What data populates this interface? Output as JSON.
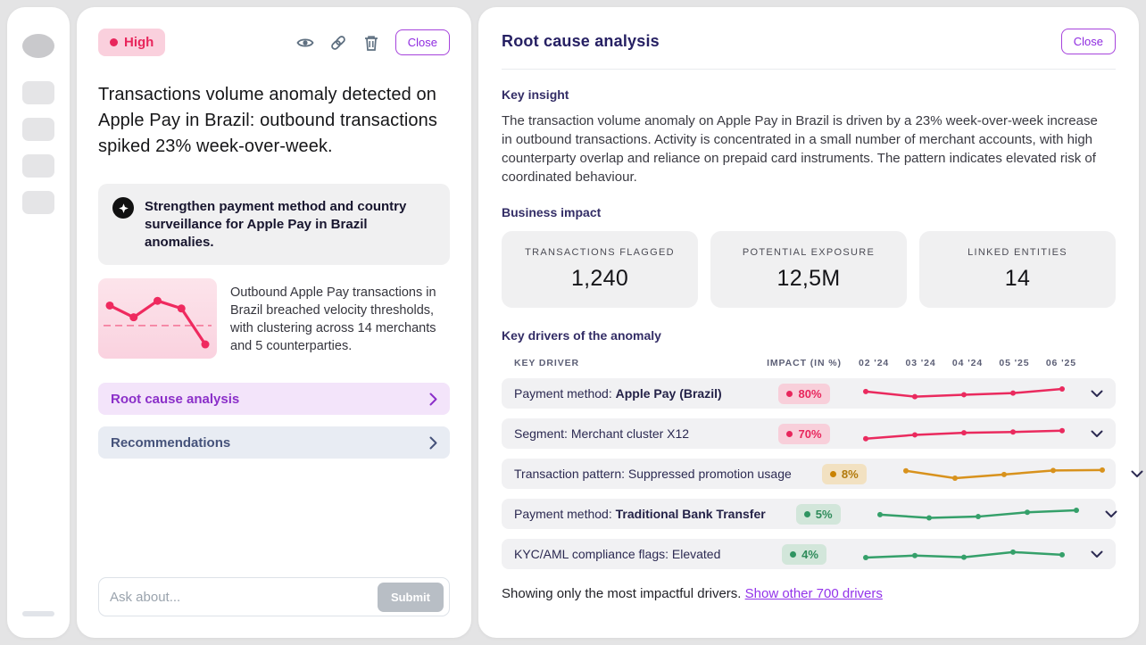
{
  "alert": {
    "severity": {
      "label": "High",
      "color": "#e8265c",
      "bg": "#fad0dd"
    },
    "actions": {
      "close_label": "Close"
    },
    "title": "Transactions volume anomaly detected on Apple Pay in Brazil: outbound transactions spiked 23% week-over-week.",
    "recommendation": "Strengthen payment method and country surveillance for Apple Pay in Brazil anomalies.",
    "thumbnail": {
      "values": [
        72,
        52,
        80,
        67,
        6
      ],
      "baseline": 38,
      "color": "#ef2a5f"
    },
    "summary": "Outbound Apple Pay transactions in Brazil breached velocity thresholds, with clustering across 14 merchants and 5 counterparties.",
    "nav": [
      {
        "label": "Root cause analysis"
      },
      {
        "label": "Recommendations"
      }
    ],
    "ask": {
      "placeholder": "Ask about...",
      "submit_label": "Submit"
    }
  },
  "panel": {
    "title": "Root cause analysis",
    "close_label": "Close",
    "key_insight": {
      "heading": "Key insight",
      "body": "The transaction volume anomaly on Apple Pay in Brazil is driven by a 23% week-over-week increase in outbound transactions. Activity is concentrated in a small number of merchant accounts, with high counterparty overlap and reliance on prepaid card instruments. The pattern indicates elevated risk of coordinated behaviour."
    },
    "business_impact": {
      "heading": "Business impact",
      "cards": [
        {
          "label": "TRANSACTIONS FLAGGED",
          "value": "1,240"
        },
        {
          "label": "POTENTIAL EXPOSURE",
          "value": "12,5M"
        },
        {
          "label": "LINKED ENTITIES",
          "value": "14"
        }
      ]
    },
    "drivers": {
      "heading": "Key drivers of the anomaly",
      "col_driver": "KEY DRIVER",
      "col_impact": "IMPACT (IN %)",
      "periods": [
        "02 '24",
        "03 '24",
        "04 '24",
        "05 '25",
        "06 '25"
      ],
      "rows": [
        {
          "prefix": "Payment method: ",
          "bold": "Apple Pay (Brazil)",
          "impact": "80%",
          "badge_bg": "#f8cfda",
          "badge_fg": "#e8265c",
          "dot": "#e8265c",
          "color": "#ea2a5e",
          "values": [
            62,
            30,
            42,
            52,
            78
          ]
        },
        {
          "prefix": "Segment: Merchant cluster X12",
          "bold": "",
          "impact": "70%",
          "badge_bg": "#f8cfda",
          "badge_fg": "#e8265c",
          "dot": "#e8265c",
          "color": "#ea2a5e",
          "values": [
            18,
            42,
            55,
            60,
            68
          ]
        },
        {
          "prefix": "Transaction pattern: Suppressed promotion usage",
          "bold": "",
          "impact": "8%",
          "badge_bg": "#f2e1c1",
          "badge_fg": "#b1790b",
          "dot": "#c98200",
          "color": "#d8921d",
          "values": [
            68,
            22,
            45,
            70,
            73
          ]
        },
        {
          "prefix": "Payment method: ",
          "bold": "Traditional Bank Transfer",
          "impact": "5%",
          "badge_bg": "#d2e6da",
          "badge_fg": "#2e8b5a",
          "dot": "#2f9461",
          "color": "#35a06a",
          "values": [
            45,
            25,
            33,
            60,
            72
          ]
        },
        {
          "prefix": "KYC/AML compliance flags: Elevated",
          "bold": "",
          "impact": "4%",
          "badge_bg": "#d2e6da",
          "badge_fg": "#2e8b5a",
          "dot": "#2f9461",
          "color": "#35a06a",
          "values": [
            28,
            40,
            30,
            62,
            45
          ]
        }
      ]
    },
    "footer": {
      "text": "Showing only the most impactful drivers. ",
      "link": "Show other 700 drivers"
    }
  }
}
